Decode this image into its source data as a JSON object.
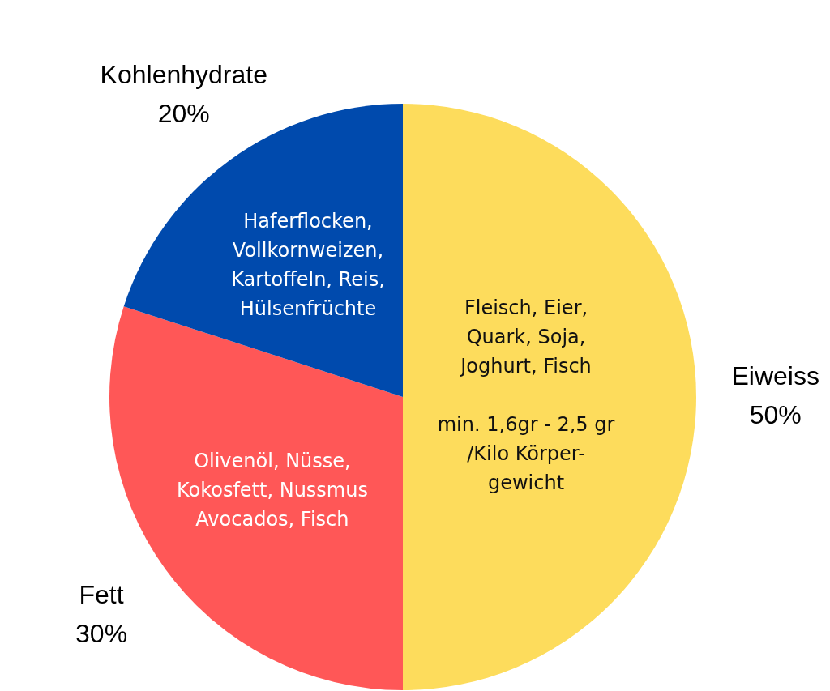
{
  "chart_data": {
    "type": "pie",
    "categories": [
      "Eiweiss",
      "Fett",
      "Kohlenhydrate"
    ],
    "values": [
      50,
      30,
      20
    ],
    "colors": [
      "#fddc5c",
      "#ff5757",
      "#004aad"
    ],
    "value_labels": [
      "50%",
      "30%",
      "20%"
    ],
    "legend": false,
    "annotations": [
      {
        "text": "Fleisch, Eier,\nQuark, Soja,\nJoghurt, Fisch\n\nmin. 1,6gr - 2,5 gr\n/Kilo Körper-\ngewicht",
        "x": "Eiweiss"
      },
      {
        "text": "Olivenöl, Nüsse,\nKokosfett, Nussmus\nAvocados, Fisch",
        "x": "Fett"
      },
      {
        "text": "Haferflocken,\nVollkornweizen,\nKartoffeln, Reis,\nHülsenfrüchte",
        "x": "Kohlenhydrate"
      }
    ]
  }
}
